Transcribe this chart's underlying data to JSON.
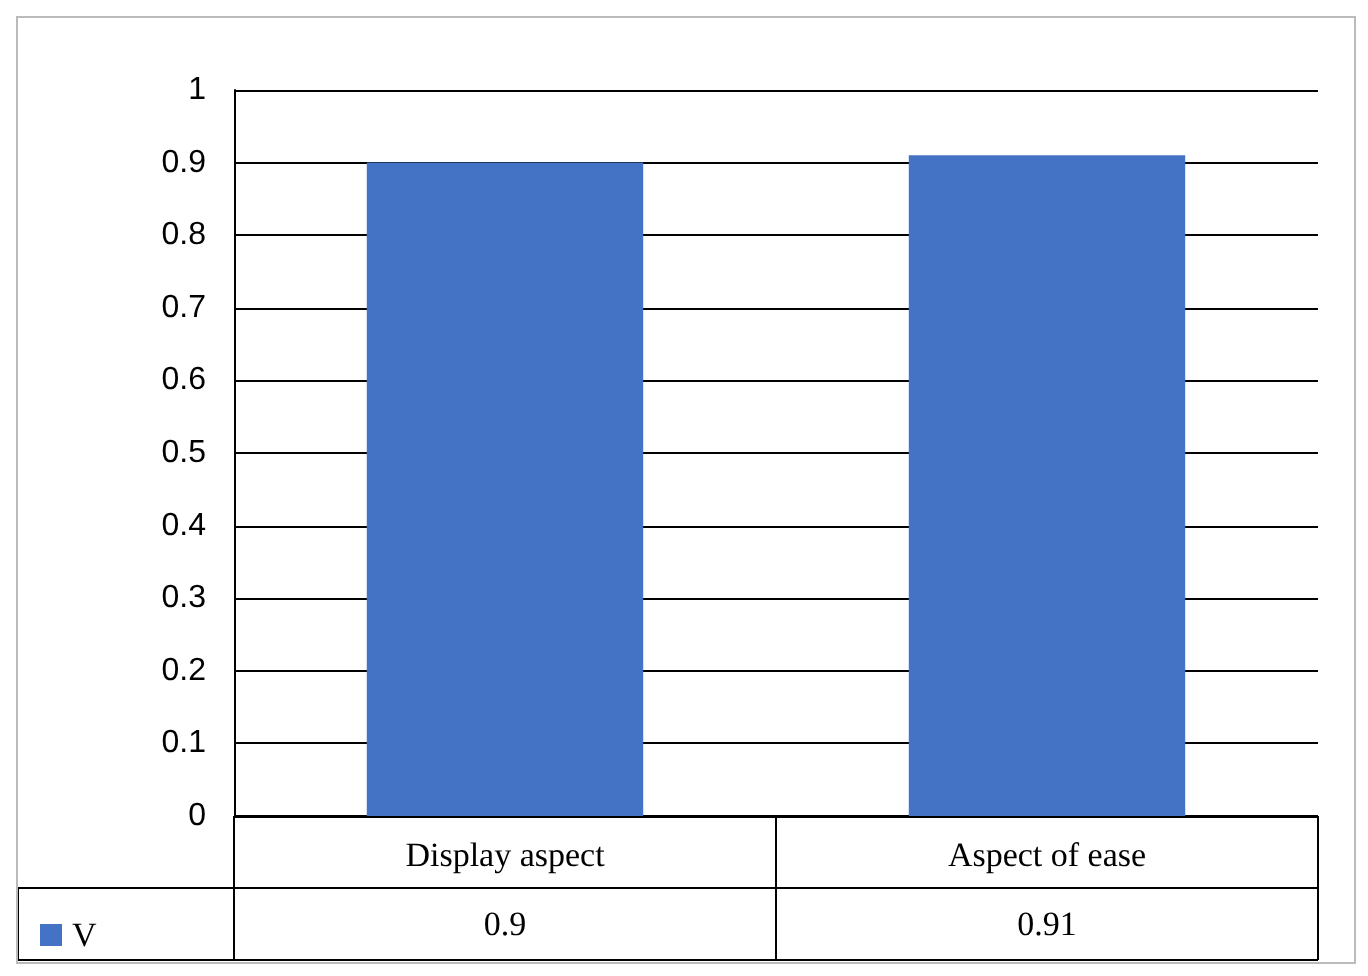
{
  "chart_data": {
    "type": "bar",
    "categories": [
      "Display aspect",
      "Aspect of ease"
    ],
    "series": [
      {
        "name": "V",
        "color": "#4472c4",
        "values": [
          0.9,
          0.91
        ]
      }
    ],
    "ylim": [
      0,
      1
    ],
    "yticks": [
      0,
      0.1,
      0.2,
      0.3,
      0.4,
      0.5,
      0.6,
      0.7,
      0.8,
      0.9,
      1
    ],
    "grid": "y",
    "legend": "bottom",
    "data_labels": true
  }
}
